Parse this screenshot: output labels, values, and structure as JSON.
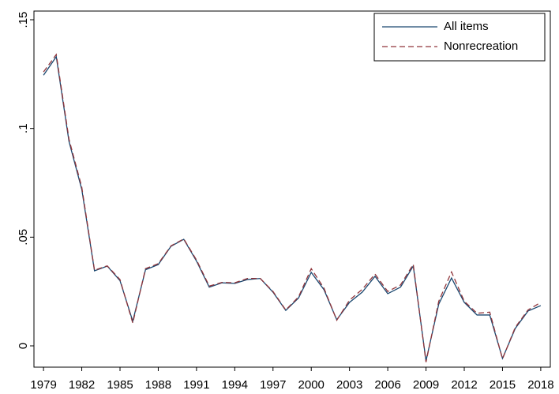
{
  "chart_data": {
    "type": "line",
    "x": [
      1979,
      1980,
      1981,
      1982,
      1983,
      1984,
      1985,
      1986,
      1987,
      1988,
      1989,
      1990,
      1991,
      1992,
      1993,
      1994,
      1995,
      1996,
      1997,
      1998,
      1999,
      2000,
      2001,
      2002,
      2003,
      2004,
      2005,
      2006,
      2007,
      2008,
      2009,
      2010,
      2011,
      2012,
      2013,
      2014,
      2015,
      2016,
      2017,
      2018
    ],
    "series": [
      {
        "name": "All items",
        "color": "#1a476f",
        "dash": false,
        "values": [
          0.1245,
          0.133,
          0.094,
          0.072,
          0.0345,
          0.0367,
          0.03,
          0.0113,
          0.035,
          0.0374,
          0.0458,
          0.049,
          0.039,
          0.027,
          0.029,
          0.0287,
          0.0305,
          0.031,
          0.0247,
          0.0163,
          0.022,
          0.0338,
          0.0258,
          0.012,
          0.02,
          0.0247,
          0.032,
          0.024,
          0.027,
          0.0367,
          -0.0069,
          0.0192,
          0.0312,
          0.02,
          0.0142,
          0.0142,
          -0.0058,
          0.008,
          0.016,
          0.0185
        ]
      },
      {
        "name": "Nonrecreation",
        "color": "#90353b",
        "dash": true,
        "values": [
          0.126,
          0.134,
          0.095,
          0.073,
          0.0348,
          0.0368,
          0.0305,
          0.0105,
          0.0355,
          0.0378,
          0.046,
          0.0492,
          0.0395,
          0.0275,
          0.0292,
          0.029,
          0.031,
          0.031,
          0.025,
          0.0165,
          0.0225,
          0.0355,
          0.0265,
          0.0118,
          0.021,
          0.026,
          0.033,
          0.025,
          0.028,
          0.0375,
          -0.0075,
          0.0205,
          0.034,
          0.0205,
          0.015,
          0.0155,
          -0.006,
          0.0085,
          0.0165,
          0.02
        ]
      }
    ],
    "xlim": [
      1978.25,
      2018.75
    ],
    "ylim": [
      -0.0098,
      0.154
    ],
    "xticks": [
      1979,
      1982,
      1985,
      1988,
      1991,
      1994,
      1997,
      2000,
      2003,
      2006,
      2009,
      2012,
      2015,
      2018
    ],
    "yticks": [
      0,
      {
        "value": 0.05,
        "label": ".05"
      },
      {
        "value": 0.1,
        "label": ".1"
      },
      {
        "value": 0.15,
        "label": ".15"
      }
    ],
    "legend": "top-right"
  }
}
